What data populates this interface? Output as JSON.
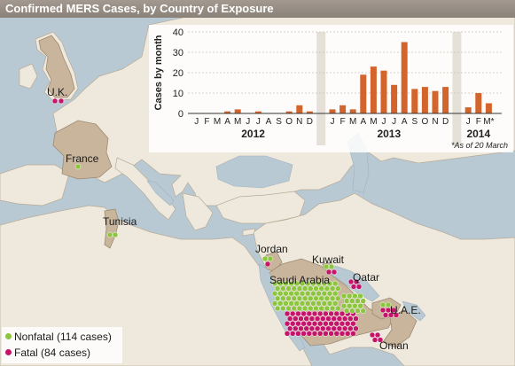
{
  "title": "Confirmed MERS Cases, by Country of Exposure",
  "countries": [
    {
      "name": "U.K.",
      "nonfatal": 0,
      "fatal": 2
    },
    {
      "name": "France",
      "nonfatal": 1,
      "fatal": 0
    },
    {
      "name": "Tunisia",
      "nonfatal": 2,
      "fatal": 0
    },
    {
      "name": "Jordan",
      "nonfatal": 0,
      "fatal": 0
    },
    {
      "name": "Kuwait",
      "nonfatal": 0,
      "fatal": 0
    },
    {
      "name": "Saudi Arabia",
      "nonfatal": 0,
      "fatal": 0
    },
    {
      "name": "Qatar",
      "nonfatal": 0,
      "fatal": 0
    },
    {
      "name": "U.A.E.",
      "nonfatal": 0,
      "fatal": 0
    },
    {
      "name": "Oman",
      "nonfatal": 0,
      "fatal": 0
    }
  ],
  "legend": {
    "nonfatal": {
      "label": "Nonfatal (114 cases)",
      "color": "#8cc63f"
    },
    "fatal": {
      "label": "Fatal (84 cases)",
      "color": "#c4156b"
    }
  },
  "note": "*As of 20 March",
  "colors": {
    "bar": "#d2642c",
    "nonfatal": "#8cc63f",
    "fatal": "#c4156b",
    "highlight_country": "#c8b59c"
  },
  "chart_data": {
    "type": "bar",
    "title": "",
    "xlabel": "",
    "ylabel": "Cases by month",
    "ylim": [
      0,
      40
    ],
    "yticks": [
      0,
      10,
      20,
      30,
      40
    ],
    "grid": true,
    "years": [
      {
        "label": "2012",
        "months": [
          "J",
          "F",
          "M",
          "A",
          "M",
          "J",
          "J",
          "A",
          "S",
          "O",
          "N",
          "D"
        ],
        "values": [
          0,
          0,
          0,
          1,
          2,
          0,
          1,
          0,
          0,
          1,
          4,
          1
        ]
      },
      {
        "label": "2013",
        "months": [
          "J",
          "F",
          "M",
          "A",
          "M",
          "J",
          "J",
          "A",
          "S",
          "O",
          "N",
          "D"
        ],
        "values": [
          2,
          4,
          2,
          19,
          23,
          21,
          14,
          35,
          12,
          13,
          11,
          13
        ]
      },
      {
        "label": "2014",
        "months": [
          "J",
          "F",
          "M*"
        ],
        "values": [
          3,
          10,
          5
        ]
      }
    ]
  }
}
